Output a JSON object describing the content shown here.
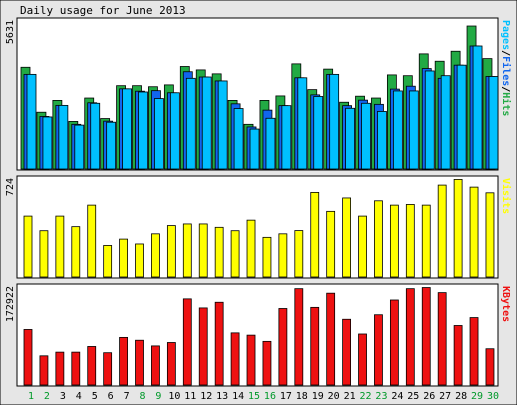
{
  "title": "Daily usage for June 2013",
  "colors": {
    "frame_bg": "#e6e6e6",
    "plot_bg": "#ffffff",
    "hits": "#22aa44",
    "files": "#1166ee",
    "pages": "#00c0ff",
    "visits": "#ffff00",
    "kbytes": "#ee1111",
    "weekend_day": "#00992a",
    "weekday": "#000000"
  },
  "chart_data": [
    {
      "type": "bar",
      "title": "Daily usage for June 2013",
      "axis_max_label": "5631",
      "ylim": [
        0,
        5631
      ],
      "legend_parts": [
        {
          "text": "Pages",
          "color": "#00c0ff"
        },
        {
          "text": "/",
          "color": "#000000"
        },
        {
          "text": "Files",
          "color": "#1166ee"
        },
        {
          "text": "/",
          "color": "#000000"
        },
        {
          "text": "Hits",
          "color": "#22aa44"
        }
      ],
      "categories": [
        "1",
        "2",
        "3",
        "4",
        "5",
        "6",
        "7",
        "8",
        "9",
        "10",
        "11",
        "12",
        "13",
        "14",
        "15",
        "16",
        "17",
        "18",
        "19",
        "20",
        "21",
        "22",
        "23",
        "24",
        "25",
        "26",
        "27",
        "28",
        "29",
        "30"
      ],
      "series": [
        {
          "name": "Hits",
          "values": [
            3870,
            2160,
            2610,
            1810,
            2700,
            1920,
            3170,
            3170,
            3130,
            3200,
            3900,
            3770,
            3620,
            2610,
            1700,
            2610,
            2780,
            4000,
            3020,
            3800,
            2540,
            2770,
            2700,
            3580,
            3550,
            4380,
            4100,
            4480,
            5440,
            4200
          ]
        },
        {
          "name": "Files",
          "values": [
            3600,
            2000,
            2420,
            1700,
            2520,
            1820,
            3050,
            2960,
            2980,
            2900,
            3700,
            3500,
            3350,
            2480,
            1600,
            2240,
            2410,
            3470,
            2820,
            3600,
            2410,
            2620,
            2460,
            3040,
            3150,
            3820,
            3450,
            3950,
            4680,
            3520
          ]
        },
        {
          "name": "Pages",
          "values": [
            3600,
            1980,
            2420,
            1670,
            2500,
            1780,
            3050,
            2930,
            2680,
            2900,
            3450,
            3500,
            3350,
            2300,
            1520,
            1930,
            2410,
            3470,
            2760,
            3600,
            2310,
            2500,
            2190,
            2970,
            2970,
            3730,
            3550,
            3950,
            4680,
            3520
          ]
        }
      ],
      "x_label_colors": [
        "green",
        "green",
        "black",
        "black",
        "black",
        "black",
        "black",
        "green",
        "green",
        "black",
        "black",
        "black",
        "black",
        "black",
        "green",
        "green",
        "black",
        "black",
        "black",
        "black",
        "black",
        "green",
        "green",
        "black",
        "black",
        "black",
        "black",
        "black",
        "green",
        "green"
      ]
    },
    {
      "type": "bar",
      "axis_max_label": "724",
      "ylim": [
        0,
        724
      ],
      "legend_parts": [
        {
          "text": "Visits",
          "color": "#ffff00"
        }
      ],
      "series": [
        {
          "name": "Visits",
          "values": [
            450,
            342,
            450,
            372,
            531,
            233,
            280,
            244,
            319,
            380,
            392,
            392,
            367,
            342,
            420,
            293,
            319,
            343,
            625,
            485,
            584,
            450,
            563,
            531,
            536,
            531,
            679,
            721,
            664,
            622
          ]
        }
      ]
    },
    {
      "type": "bar",
      "axis_max_label": "172922",
      "ylim": [
        0,
        172922
      ],
      "legend_parts": [
        {
          "text": "KBytes",
          "color": "#ee1111"
        }
      ],
      "series": [
        {
          "name": "KBytes",
          "values": [
            98000,
            51500,
            58000,
            58000,
            68000,
            57000,
            84000,
            79000,
            69000,
            75000,
            152000,
            136000,
            146000,
            92000,
            88000,
            77000,
            135000,
            170000,
            137000,
            162000,
            116000,
            90000,
            124000,
            150000,
            170000,
            172000,
            163000,
            105000,
            119000,
            64000
          ]
        }
      ]
    }
  ]
}
